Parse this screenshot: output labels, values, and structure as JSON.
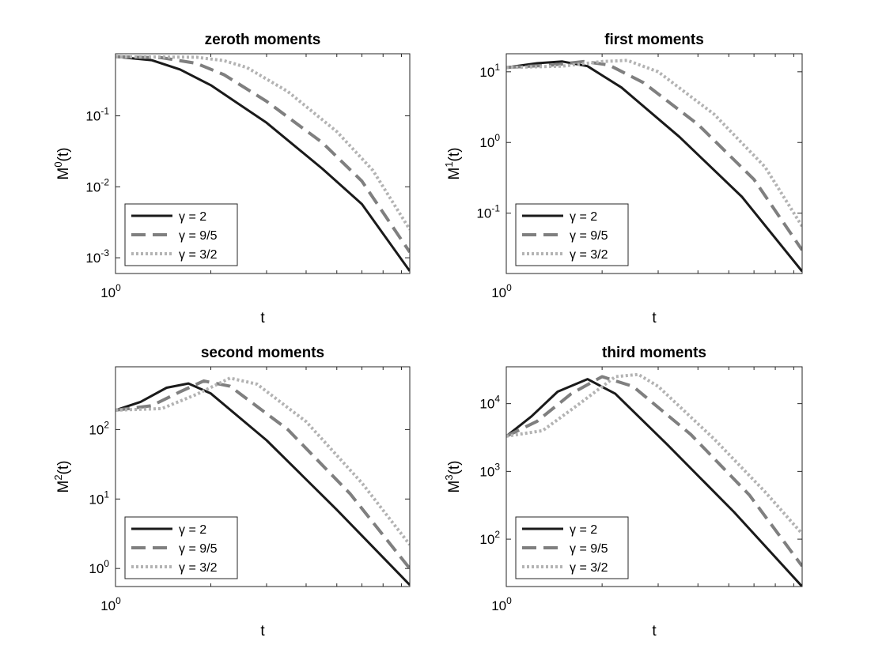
{
  "styles": {
    "solid": {
      "color": "#1a1a1a",
      "dash": "none"
    },
    "dashed": {
      "color": "#7f7f7f",
      "dash": "18,9"
    },
    "dotted": {
      "color": "#b3b3b3",
      "dash": "3,3"
    }
  },
  "chart_data": [
    {
      "type": "line",
      "title": "zeroth moments",
      "xlabel": "t",
      "ylabel": {
        "base": "M",
        "sup": "0",
        "suffix": "(t)"
      },
      "xscale": "log",
      "yscale": "log",
      "xlim": [
        1,
        8.5
      ],
      "ylim": [
        0.0006,
        0.75
      ],
      "xticks": [
        {
          "value": 1,
          "base": "10",
          "exp": "0"
        }
      ],
      "yticks": [
        {
          "value": 0.1,
          "base": "10",
          "exp": "-1"
        },
        {
          "value": 0.01,
          "base": "10",
          "exp": "-2"
        },
        {
          "value": 0.001,
          "base": "10",
          "exp": "-3"
        }
      ],
      "legend": {
        "position": "bottom-left",
        "labels": [
          "γ = 2",
          "γ = 9/5",
          "γ = 3/2"
        ]
      },
      "series": [
        {
          "name": "γ = 2",
          "style": "solid",
          "x": [
            1,
            1.3,
            1.6,
            2.0,
            3.0,
            4.5,
            6.0,
            8.5
          ],
          "y": [
            0.68,
            0.61,
            0.45,
            0.27,
            0.08,
            0.018,
            0.0057,
            0.00065
          ]
        },
        {
          "name": "γ = 9/5",
          "style": "dashed",
          "x": [
            1,
            1.4,
            1.8,
            2.2,
            3.0,
            4.5,
            6.0,
            8.5
          ],
          "y": [
            0.68,
            0.66,
            0.55,
            0.38,
            0.16,
            0.042,
            0.012,
            0.0012
          ]
        },
        {
          "name": "γ = 3/2",
          "style": "dotted",
          "x": [
            1,
            1.8,
            2.2,
            2.6,
            3.5,
            5.0,
            6.5,
            8.5
          ],
          "y": [
            0.68,
            0.67,
            0.6,
            0.48,
            0.22,
            0.06,
            0.017,
            0.0025
          ]
        }
      ]
    },
    {
      "type": "line",
      "title": "first moments",
      "xlabel": "t",
      "ylabel": {
        "base": "M",
        "sup": "1",
        "suffix": "(t)"
      },
      "xscale": "log",
      "yscale": "log",
      "xlim": [
        1,
        8.5
      ],
      "ylim": [
        0.014,
        18
      ],
      "xticks": [
        {
          "value": 1,
          "base": "10",
          "exp": "0"
        }
      ],
      "yticks": [
        {
          "value": 10,
          "base": "10",
          "exp": "1"
        },
        {
          "value": 1,
          "base": "10",
          "exp": "0"
        },
        {
          "value": 0.1,
          "base": "10",
          "exp": "-1"
        }
      ],
      "legend": {
        "position": "bottom-left",
        "labels": [
          "γ = 2",
          "γ = 9/5",
          "γ = 3/2"
        ]
      },
      "series": [
        {
          "name": "γ = 2",
          "style": "solid",
          "x": [
            1,
            1.25,
            1.5,
            1.8,
            2.3,
            3.5,
            5.5,
            8.5
          ],
          "y": [
            11.5,
            13.2,
            14,
            12,
            6,
            1.2,
            0.17,
            0.015
          ]
        },
        {
          "name": "γ = 9/5",
          "style": "dashed",
          "x": [
            1,
            1.4,
            1.75,
            2.1,
            2.7,
            4.0,
            6.0,
            8.5
          ],
          "y": [
            11.5,
            12.5,
            14,
            12.5,
            7,
            1.8,
            0.3,
            0.03
          ]
        },
        {
          "name": "γ = 3/2",
          "style": "dotted",
          "x": [
            1,
            1.5,
            2.0,
            2.4,
            3.0,
            4.5,
            6.5,
            8.5
          ],
          "y": [
            11.5,
            12,
            14,
            14.5,
            10,
            2.5,
            0.45,
            0.065
          ]
        }
      ]
    },
    {
      "type": "line",
      "title": "second moments",
      "xlabel": "t",
      "ylabel": {
        "base": "M",
        "sup": "2",
        "suffix": "(t)"
      },
      "xscale": "log",
      "yscale": "log",
      "xlim": [
        1,
        8.5
      ],
      "ylim": [
        0.55,
        800
      ],
      "xticks": [
        {
          "value": 1,
          "base": "10",
          "exp": "0"
        }
      ],
      "yticks": [
        {
          "value": 100,
          "base": "10",
          "exp": "2"
        },
        {
          "value": 10,
          "base": "10",
          "exp": "1"
        },
        {
          "value": 1,
          "base": "10",
          "exp": "0"
        }
      ],
      "legend": {
        "position": "bottom-left",
        "labels": [
          "γ = 2",
          "γ = 9/5",
          "γ = 3/2"
        ]
      },
      "series": [
        {
          "name": "γ = 2",
          "style": "solid",
          "x": [
            1,
            1.2,
            1.45,
            1.7,
            2.0,
            3.0,
            5.0,
            8.5
          ],
          "y": [
            190,
            250,
            400,
            460,
            330,
            70,
            7,
            0.58
          ]
        },
        {
          "name": "γ = 9/5",
          "style": "dashed",
          "x": [
            1,
            1.3,
            1.6,
            1.9,
            2.3,
            3.5,
            5.5,
            8.5
          ],
          "y": [
            190,
            220,
            350,
            500,
            420,
            100,
            12,
            1.0
          ]
        },
        {
          "name": "γ = 3/2",
          "style": "dotted",
          "x": [
            1,
            1.4,
            1.8,
            2.3,
            2.8,
            4.0,
            6.0,
            8.5
          ],
          "y": [
            190,
            200,
            320,
            550,
            450,
            130,
            17,
            2.2
          ]
        }
      ]
    },
    {
      "type": "line",
      "title": "third moments",
      "xlabel": "t",
      "ylabel": {
        "base": "M",
        "sup": "3",
        "suffix": "(t)"
      },
      "xscale": "log",
      "yscale": "log",
      "xlim": [
        1,
        8.5
      ],
      "ylim": [
        20,
        35000
      ],
      "xticks": [
        {
          "value": 1,
          "base": "10",
          "exp": "0"
        }
      ],
      "yticks": [
        {
          "value": 10000,
          "base": "10",
          "exp": "4"
        },
        {
          "value": 1000,
          "base": "10",
          "exp": "3"
        },
        {
          "value": 100,
          "base": "10",
          "exp": "2"
        }
      ],
      "legend": {
        "position": "bottom-left",
        "labels": [
          "γ = 2",
          "γ = 9/5",
          "γ = 3/2"
        ]
      },
      "series": [
        {
          "name": "γ = 2",
          "style": "solid",
          "x": [
            1,
            1.2,
            1.45,
            1.8,
            2.2,
            3.2,
            5.2,
            8.5
          ],
          "y": [
            3300,
            6500,
            15000,
            23000,
            14000,
            2500,
            250,
            20
          ]
        },
        {
          "name": "γ = 9/5",
          "style": "dashed",
          "x": [
            1,
            1.25,
            1.6,
            2.0,
            2.5,
            3.8,
            5.8,
            8.5
          ],
          "y": [
            3300,
            5500,
            14000,
            25000,
            18000,
            3500,
            450,
            40
          ]
        },
        {
          "name": "γ = 3/2",
          "style": "dotted",
          "x": [
            1,
            1.3,
            1.7,
            2.2,
            2.6,
            3.0,
            4.5,
            6.5,
            8.5
          ],
          "y": [
            3300,
            4000,
            10000,
            25000,
            27000,
            18000,
            3000,
            500,
            120
          ]
        }
      ]
    }
  ]
}
